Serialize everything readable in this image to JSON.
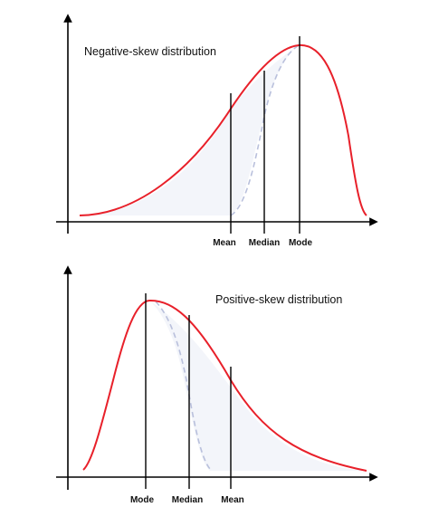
{
  "colors": {
    "curve": "#e8202a",
    "dashed": "#b9c0dc",
    "shade": "#f3f5fa",
    "axis": "#000000",
    "marker": "#000000"
  },
  "panels": [
    {
      "title": "Negative-skew distribution",
      "markers": [
        "Mean",
        "Median",
        "Mode"
      ]
    },
    {
      "title": "Positive-skew distribution",
      "markers": [
        "Mode",
        "Median",
        "Mean"
      ]
    }
  ]
}
